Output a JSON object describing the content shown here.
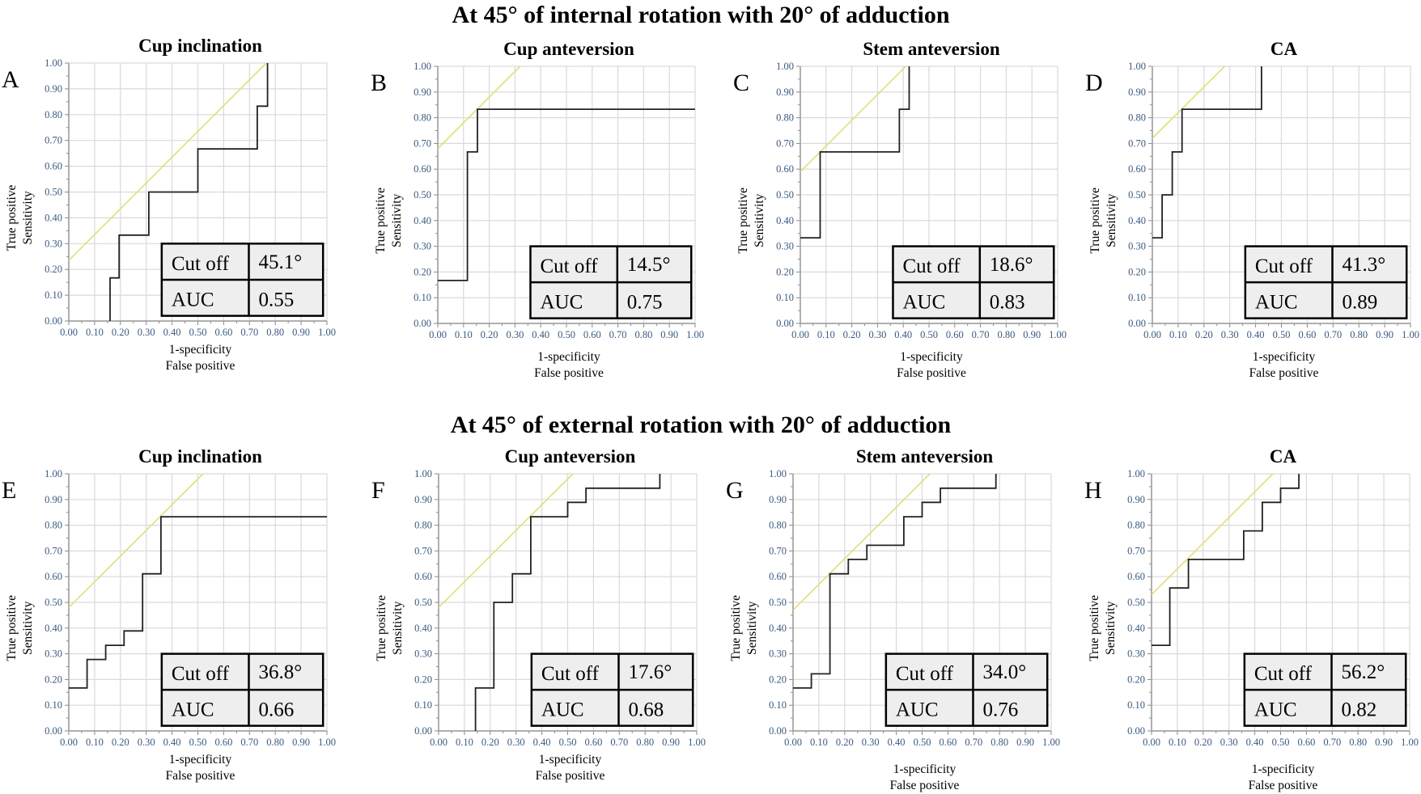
{
  "row_titles": [
    "At 45° of internal rotation with 20° of adduction",
    "At 45° of external rotation with 20° of adduction"
  ],
  "chart_data": [
    {
      "type": "line",
      "panel": "A",
      "title": "Cup inclination",
      "xlabel": [
        "1-specificity",
        "False positive"
      ],
      "ylabel": [
        "True positive",
        "Sensitivity"
      ],
      "xlim": [
        0,
        1
      ],
      "ylim": [
        0,
        1
      ],
      "ticks": [
        "0.00",
        "0.10",
        "0.20",
        "0.30",
        "0.40",
        "0.50",
        "0.60",
        "0.70",
        "0.80",
        "0.90",
        "1.00"
      ],
      "grid": true,
      "roc": [
        [
          0.16,
          0
        ],
        [
          0.16,
          0.167
        ],
        [
          0.195,
          0.167
        ],
        [
          0.195,
          0.333
        ],
        [
          0.31,
          0.333
        ],
        [
          0.31,
          0.5
        ],
        [
          0.5,
          0.5
        ],
        [
          0.5,
          0.667
        ],
        [
          0.73,
          0.667
        ],
        [
          0.73,
          0.833
        ],
        [
          0.77,
          0.833
        ],
        [
          0.77,
          1
        ]
      ],
      "tangent_intercept": 0.235,
      "table": {
        "cutoff_label": "Cut off",
        "cutoff": "45.1°",
        "auc_label": "AUC",
        "auc": "0.55"
      }
    },
    {
      "type": "line",
      "panel": "B",
      "title": "Cup anteversion",
      "xlabel": [
        "1-specificity",
        "False positive"
      ],
      "ylabel": [
        "True positive",
        "Sensitivity"
      ],
      "xlim": [
        0,
        1
      ],
      "ylim": [
        0,
        1
      ],
      "ticks": [
        "0.00",
        "0.10",
        "0.20",
        "0.30",
        "0.40",
        "0.50",
        "0.60",
        "0.70",
        "0.80",
        "0.90",
        "1.00"
      ],
      "grid": true,
      "roc": [
        [
          0,
          0.167
        ],
        [
          0.115,
          0.167
        ],
        [
          0.115,
          0.667
        ],
        [
          0.154,
          0.667
        ],
        [
          0.154,
          0.833
        ],
        [
          1,
          0.833
        ]
      ],
      "tangent_intercept": 0.68,
      "table": {
        "cutoff_label": "Cut off",
        "cutoff": "14.5°",
        "auc_label": "AUC",
        "auc": "0.75"
      }
    },
    {
      "type": "line",
      "panel": "C",
      "title": "Stem anteversion",
      "xlabel": [
        "1-specificity",
        "False positive"
      ],
      "ylabel": [
        "True positive",
        "Sensitivity"
      ],
      "xlim": [
        0,
        1
      ],
      "ylim": [
        0,
        1
      ],
      "ticks": [
        "0.00",
        "0.10",
        "0.20",
        "0.30",
        "0.40",
        "0.50",
        "0.60",
        "0.70",
        "0.80",
        "0.90",
        "1.00"
      ],
      "grid": true,
      "roc": [
        [
          0,
          0.333
        ],
        [
          0.077,
          0.333
        ],
        [
          0.077,
          0.667
        ],
        [
          0.385,
          0.667
        ],
        [
          0.385,
          0.833
        ],
        [
          0.423,
          0.833
        ],
        [
          0.423,
          1
        ]
      ],
      "tangent_intercept": 0.59,
      "table": {
        "cutoff_label": "Cut off",
        "cutoff": "18.6°",
        "auc_label": "AUC",
        "auc": "0.83"
      }
    },
    {
      "type": "line",
      "panel": "D",
      "title": "CA",
      "xlabel": [
        "1-specificity",
        "False positive"
      ],
      "ylabel": [
        "True positive",
        "Sensitivity"
      ],
      "xlim": [
        0,
        1
      ],
      "ylim": [
        0,
        1
      ],
      "ticks": [
        "0.00",
        "0.10",
        "0.20",
        "0.30",
        "0.40",
        "0.50",
        "0.60",
        "0.70",
        "0.80",
        "0.90",
        "1.00"
      ],
      "grid": true,
      "roc": [
        [
          0,
          0.333
        ],
        [
          0.038,
          0.333
        ],
        [
          0.038,
          0.5
        ],
        [
          0.077,
          0.5
        ],
        [
          0.077,
          0.667
        ],
        [
          0.115,
          0.667
        ],
        [
          0.115,
          0.833
        ],
        [
          0.423,
          0.833
        ],
        [
          0.423,
          1
        ]
      ],
      "tangent_intercept": 0.72,
      "table": {
        "cutoff_label": "Cut off",
        "cutoff": "41.3°",
        "auc_label": "AUC",
        "auc": "0.89"
      }
    },
    {
      "type": "line",
      "panel": "E",
      "title": "Cup inclination",
      "xlabel": [
        "1-specificity",
        "False positive"
      ],
      "ylabel": [
        "True positive",
        "Sensitivity"
      ],
      "xlim": [
        0,
        1
      ],
      "ylim": [
        0,
        1
      ],
      "ticks": [
        "0.00",
        "0.10",
        "0.20",
        "0.30",
        "0.40",
        "0.50",
        "0.60",
        "0.70",
        "0.80",
        "0.90",
        "1.00"
      ],
      "grid": true,
      "roc": [
        [
          0,
          0.167
        ],
        [
          0.071,
          0.167
        ],
        [
          0.071,
          0.278
        ],
        [
          0.143,
          0.278
        ],
        [
          0.143,
          0.333
        ],
        [
          0.214,
          0.333
        ],
        [
          0.214,
          0.389
        ],
        [
          0.286,
          0.389
        ],
        [
          0.286,
          0.611
        ],
        [
          0.357,
          0.611
        ],
        [
          0.357,
          0.833
        ],
        [
          1,
          0.833
        ]
      ],
      "tangent_intercept": 0.48,
      "table": {
        "cutoff_label": "Cut off",
        "cutoff": "36.8°",
        "auc_label": "AUC",
        "auc": "0.66"
      }
    },
    {
      "type": "line",
      "panel": "F",
      "title": "Cup anteversion",
      "xlabel": [
        "1-specificity",
        "False positive"
      ],
      "ylabel": [
        "True positive",
        "Sensitivity"
      ],
      "xlim": [
        0,
        1
      ],
      "ylim": [
        0,
        1
      ],
      "ticks": [
        "0.00",
        "0.10",
        "0.20",
        "0.30",
        "0.40",
        "0.50",
        "0.60",
        "0.70",
        "0.80",
        "0.90",
        "1.00"
      ],
      "grid": true,
      "roc": [
        [
          0.143,
          0
        ],
        [
          0.143,
          0.167
        ],
        [
          0.214,
          0.167
        ],
        [
          0.214,
          0.5
        ],
        [
          0.286,
          0.5
        ],
        [
          0.286,
          0.611
        ],
        [
          0.357,
          0.611
        ],
        [
          0.357,
          0.833
        ],
        [
          0.5,
          0.833
        ],
        [
          0.5,
          0.889
        ],
        [
          0.571,
          0.889
        ],
        [
          0.571,
          0.944
        ],
        [
          0.857,
          0.944
        ],
        [
          0.857,
          1
        ]
      ],
      "tangent_intercept": 0.48,
      "table": {
        "cutoff_label": "Cut off",
        "cutoff": "17.6°",
        "auc_label": "AUC",
        "auc": "0.68"
      }
    },
    {
      "type": "line",
      "panel": "G",
      "title": "Stem anteversion",
      "xlabel": [
        "1-specificity",
        "False positive"
      ],
      "ylabel": [
        "True positive",
        "Sensitivity"
      ],
      "xlim": [
        0,
        1
      ],
      "ylim": [
        0,
        1
      ],
      "ticks": [
        "0.00",
        "0.10",
        "0.20",
        "0.30",
        "0.40",
        "0.50",
        "0.60",
        "0.70",
        "0.80",
        "0.90",
        "1.00"
      ],
      "grid": true,
      "roc": [
        [
          0,
          0.167
        ],
        [
          0.071,
          0.167
        ],
        [
          0.071,
          0.222
        ],
        [
          0.143,
          0.222
        ],
        [
          0.143,
          0.611
        ],
        [
          0.214,
          0.611
        ],
        [
          0.214,
          0.667
        ],
        [
          0.286,
          0.667
        ],
        [
          0.286,
          0.722
        ],
        [
          0.429,
          0.722
        ],
        [
          0.429,
          0.833
        ],
        [
          0.5,
          0.833
        ],
        [
          0.5,
          0.889
        ],
        [
          0.571,
          0.889
        ],
        [
          0.571,
          0.944
        ],
        [
          0.786,
          0.944
        ],
        [
          0.786,
          1
        ]
      ],
      "tangent_intercept": 0.47,
      "table": {
        "cutoff_label": "Cut off",
        "cutoff": "34.0°",
        "auc_label": "AUC",
        "auc": "0.76"
      }
    },
    {
      "type": "line",
      "panel": "H",
      "title": "CA",
      "xlabel": [
        "1-specificity",
        "False positive"
      ],
      "ylabel": [
        "True positive",
        "Sensitivity"
      ],
      "xlim": [
        0,
        1
      ],
      "ylim": [
        0,
        1
      ],
      "ticks": [
        "0.00",
        "0.10",
        "0.20",
        "0.30",
        "0.40",
        "0.50",
        "0.60",
        "0.70",
        "0.80",
        "0.90",
        "1.00"
      ],
      "grid": true,
      "roc": [
        [
          0,
          0.333
        ],
        [
          0.071,
          0.333
        ],
        [
          0.071,
          0.556
        ],
        [
          0.143,
          0.556
        ],
        [
          0.143,
          0.667
        ],
        [
          0.357,
          0.667
        ],
        [
          0.357,
          0.778
        ],
        [
          0.429,
          0.778
        ],
        [
          0.429,
          0.889
        ],
        [
          0.5,
          0.889
        ],
        [
          0.5,
          0.944
        ],
        [
          0.571,
          0.944
        ],
        [
          0.571,
          1
        ]
      ],
      "tangent_intercept": 0.53,
      "table": {
        "cutoff_label": "Cut off",
        "cutoff": "56.2°",
        "auc_label": "AUC",
        "auc": "0.82"
      }
    }
  ],
  "colors": {
    "roc": "#222222",
    "tangent": "#e6dc78",
    "grid": "#d9d9d9",
    "table_fill": "#eeeeee"
  }
}
